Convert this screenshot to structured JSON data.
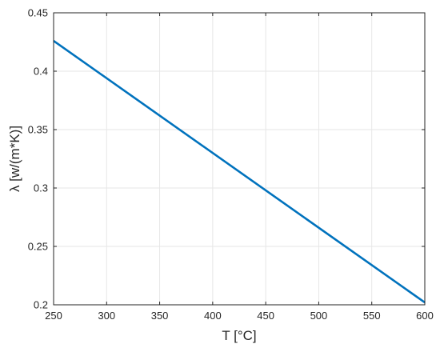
{
  "chart_data": {
    "type": "line",
    "xlabel": "T [°C]",
    "ylabel": "λ [w/(m*K)]",
    "xlim": [
      250,
      600
    ],
    "ylim": [
      0.2,
      0.45
    ],
    "x_ticks": [
      250,
      300,
      350,
      400,
      450,
      500,
      550,
      600
    ],
    "y_ticks": [
      0.2,
      0.25,
      0.3,
      0.35,
      0.4,
      0.45
    ],
    "x_tick_labels": [
      "250",
      "300",
      "350",
      "400",
      "450",
      "500",
      "550",
      "600"
    ],
    "y_tick_labels": [
      "0.2",
      "0.25",
      "0.3",
      "0.35",
      "0.4",
      "0.45"
    ],
    "grid": true,
    "series": [
      {
        "x": [
          250,
          600
        ],
        "y": [
          0.426,
          0.202
        ],
        "color": "#0072bd"
      }
    ]
  }
}
